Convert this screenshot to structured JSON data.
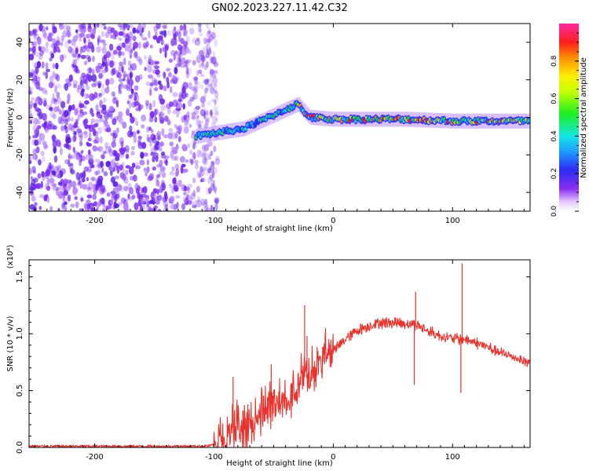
{
  "title": "GN02.2023.227.11.42.C32",
  "colors": {
    "snr_line": "#e8332e",
    "noise_speckle": "#7a2cf0",
    "background": "#ffffff"
  },
  "chart_data": [
    {
      "type": "heatmap",
      "title": "",
      "xlabel": "Height of straight line (km)",
      "ylabel": "Frequency (Hz)",
      "xlim": [
        -255,
        165
      ],
      "ylim": [
        -50,
        50
      ],
      "xticks": [
        -200,
        -100,
        0,
        100
      ],
      "yticks": [
        -40,
        -20,
        0,
        20,
        40
      ],
      "colorbar": {
        "label": "Normalized spectral amplitude",
        "range": [
          0,
          1
        ],
        "ticks": [
          "0.0",
          "0.2",
          "0.4",
          "0.6",
          "0.8"
        ],
        "tick_values": [
          0.0,
          0.2,
          0.4,
          0.6,
          0.8
        ],
        "colormap": "rainbow (white-purple-blue-cyan-green-yellow-red-magenta)"
      },
      "features": {
        "noise_region_x": [
          -255,
          -97
        ],
        "ridge": [
          {
            "x": -115,
            "freq": -10
          },
          {
            "x": -75,
            "freq": -6
          },
          {
            "x": -30,
            "freq": 7
          },
          {
            "x": -20,
            "freq": 0
          },
          {
            "x": 0,
            "freq": -1
          },
          {
            "x": 60,
            "freq": -1
          },
          {
            "x": 100,
            "freq": -2
          },
          {
            "x": 165,
            "freq": -2
          }
        ]
      },
      "grid": false
    },
    {
      "type": "line",
      "title": "",
      "xlabel": "Height of straight line (km)",
      "ylabel": "SNR (10 * v/v)",
      "y_scale_label": "(x10⁴)",
      "xlim": [
        -255,
        165
      ],
      "ylim": [
        0,
        1.65
      ],
      "xticks": [
        -200,
        -100,
        0,
        100
      ],
      "yticks": [
        0.0,
        0.5,
        1.0,
        1.5
      ],
      "ytick_labels": [
        "0.0",
        "0.5",
        "1.0",
        "1.5"
      ],
      "series": [
        {
          "x": [
            -255,
            -200,
            -150,
            -110,
            -100,
            -90,
            -80,
            -70,
            -60,
            -50,
            -40,
            -30,
            -20,
            -10,
            0,
            10,
            20,
            30,
            40,
            50,
            60,
            70,
            80,
            90,
            100,
            110,
            120,
            130,
            140,
            150,
            165
          ],
          "y": [
            0.01,
            0.01,
            0.01,
            0.01,
            0.02,
            0.1,
            0.22,
            0.18,
            0.35,
            0.4,
            0.45,
            0.55,
            0.7,
            0.78,
            0.85,
            0.95,
            1.03,
            1.07,
            1.1,
            1.1,
            1.09,
            1.08,
            1.02,
            0.98,
            0.96,
            0.95,
            0.92,
            0.88,
            0.83,
            0.8,
            0.74
          ]
        }
      ],
      "annotations": [
        {
          "x": 69,
          "y": 1.37
        },
        {
          "x": 68,
          "y": 0.55
        },
        {
          "x": 108,
          "y": 1.62
        },
        {
          "x": 107,
          "y": 0.48
        },
        {
          "x": -24,
          "y": 1.25
        },
        {
          "x": -22,
          "y": 0.98
        },
        {
          "x": -84,
          "y": 0.62
        },
        {
          "x": -52,
          "y": 0.73
        }
      ],
      "grid": false
    }
  ]
}
